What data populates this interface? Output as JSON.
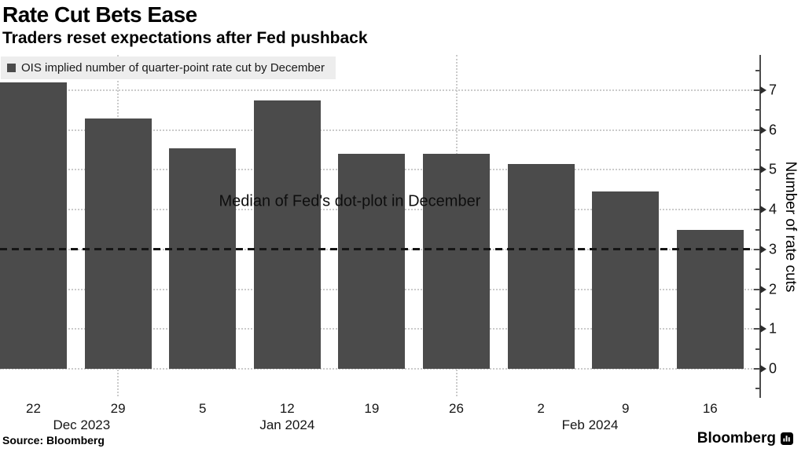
{
  "header": {
    "title": "Rate Cut Bets Ease",
    "subtitle": "Traders reset expectations after Fed pushback"
  },
  "legend": {
    "label": "OIS implied number of quarter-point rate cut by December",
    "marker_color": "#4b4b4b",
    "background": "#ededed"
  },
  "footer": {
    "source": "Source: Bloomberg",
    "brand": "Bloomberg"
  },
  "chart_data": {
    "type": "bar",
    "title": "Rate Cut Bets Ease",
    "subtitle": "Traders reset expectations after Fed pushback",
    "series_name": "OIS implied number of quarter-point rate cut by December",
    "categories": [
      "22",
      "29",
      "5",
      "12",
      "19",
      "26",
      "2",
      "9",
      "16"
    ],
    "values": [
      7.2,
      6.3,
      5.55,
      6.75,
      5.4,
      5.4,
      5.15,
      4.45,
      3.5
    ],
    "month_labels": [
      {
        "label": "Dec 2023",
        "anchor_index": 0.57
      },
      {
        "label": "Jan 2024",
        "anchor_index": 3.0
      },
      {
        "label": "Feb 2024",
        "anchor_index": 6.58
      }
    ],
    "xlabel": "",
    "ylabel": "Number of rate cuts",
    "ylim": [
      0,
      7
    ],
    "yticks": [
      0,
      1,
      2,
      3,
      4,
      5,
      6,
      7
    ],
    "minor_ytick_step": 0.5,
    "axis_side": "right",
    "grid": "dotted horizontal lines at integers; dotted vertical lines at month-end bars",
    "vertical_gridline_indices": [
      1,
      5
    ],
    "reference_line": {
      "value": 3,
      "style": "dashed",
      "color": "#151515"
    },
    "annotation": {
      "text": "Median of Fed's dot-plot in December",
      "center_index": 3.74,
      "y_value": 4.2
    },
    "bar_color": "#4b4b4b",
    "grid_color": "#cbcbcb",
    "legend_position": "top-left"
  }
}
